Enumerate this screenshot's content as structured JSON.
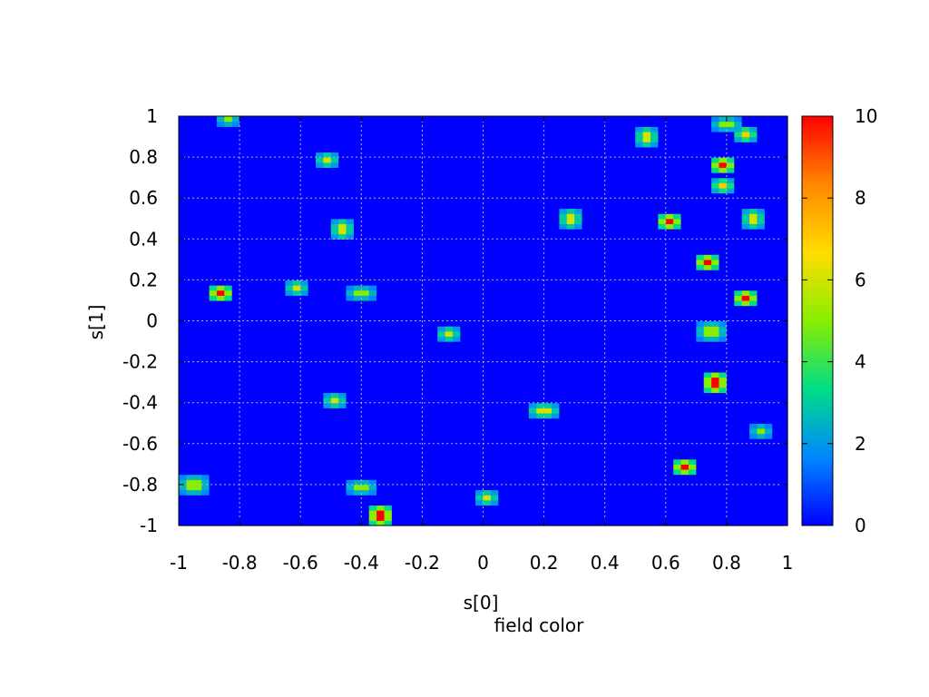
{
  "chart_data": {
    "type": "heatmap",
    "xlabel": "s[0]",
    "ylabel": "s[1]",
    "caption": "field color",
    "xlim": [
      -1,
      1
    ],
    "ylim": [
      -1,
      1
    ],
    "x_ticks": [
      -1,
      -0.8,
      -0.6,
      -0.4,
      -0.2,
      0,
      0.2,
      0.4,
      0.6,
      0.8,
      1
    ],
    "y_ticks": [
      -1,
      -0.8,
      -0.6,
      -0.4,
      -0.2,
      0,
      0.2,
      0.4,
      0.6,
      0.8,
      1
    ],
    "x_tick_labels": [
      "-1",
      "-0.8",
      "-0.6",
      "-0.4",
      "-0.2",
      "0",
      "0.2",
      "0.4",
      "0.6",
      "0.8",
      "1"
    ],
    "y_tick_labels": [
      "-1",
      "-0.8",
      "-0.6",
      "-0.4",
      "-0.2",
      "0",
      "0.2",
      "0.4",
      "0.6",
      "0.8",
      "1"
    ],
    "grid": true,
    "background_value": 0,
    "colorbar": {
      "range": [
        0,
        10
      ],
      "ticks": [
        0,
        2,
        4,
        6,
        8,
        10
      ],
      "tick_labels": [
        "0",
        "2",
        "4",
        "6",
        "8",
        "10"
      ],
      "palette": [
        "#0000ff",
        "#0088ff",
        "#00dd88",
        "#88ee00",
        "#ffdd00",
        "#ff8800",
        "#ff0000"
      ]
    },
    "hotspots": [
      {
        "x": -0.84,
        "y": 0.98,
        "peak": 5
      },
      {
        "x": -0.52,
        "y": 0.78,
        "peak": 6
      },
      {
        "x": -0.47,
        "y": 0.45,
        "peak": 6
      },
      {
        "x": -0.87,
        "y": 0.13,
        "peak": 10
      },
      {
        "x": -0.62,
        "y": 0.16,
        "peak": 6
      },
      {
        "x": -0.4,
        "y": 0.14,
        "peak": 5
      },
      {
        "x": -0.11,
        "y": -0.06,
        "peak": 6
      },
      {
        "x": -0.49,
        "y": -0.39,
        "peak": 6
      },
      {
        "x": -0.95,
        "y": -0.8,
        "peak": 5
      },
      {
        "x": -0.4,
        "y": -0.82,
        "peak": 5
      },
      {
        "x": -0.33,
        "y": -0.95,
        "peak": 10
      },
      {
        "x": 0.01,
        "y": -0.87,
        "peak": 6
      },
      {
        "x": 0.2,
        "y": -0.43,
        "peak": 6
      },
      {
        "x": 0.28,
        "y": 0.5,
        "peak": 6
      },
      {
        "x": 0.54,
        "y": 0.9,
        "peak": 6
      },
      {
        "x": 0.61,
        "y": 0.48,
        "peak": 10
      },
      {
        "x": 0.73,
        "y": 0.29,
        "peak": 10
      },
      {
        "x": 0.79,
        "y": 0.76,
        "peak": 10
      },
      {
        "x": 0.79,
        "y": 0.67,
        "peak": 7
      },
      {
        "x": 0.8,
        "y": 0.97,
        "peak": 5
      },
      {
        "x": 0.87,
        "y": 0.92,
        "peak": 7
      },
      {
        "x": 0.88,
        "y": 0.5,
        "peak": 6
      },
      {
        "x": 0.86,
        "y": 0.11,
        "peak": 10
      },
      {
        "x": 0.75,
        "y": -0.05,
        "peak": 5
      },
      {
        "x": 0.76,
        "y": -0.3,
        "peak": 10
      },
      {
        "x": 0.92,
        "y": -0.54,
        "peak": 5
      },
      {
        "x": 0.67,
        "y": -0.71,
        "peak": 10
      }
    ]
  }
}
